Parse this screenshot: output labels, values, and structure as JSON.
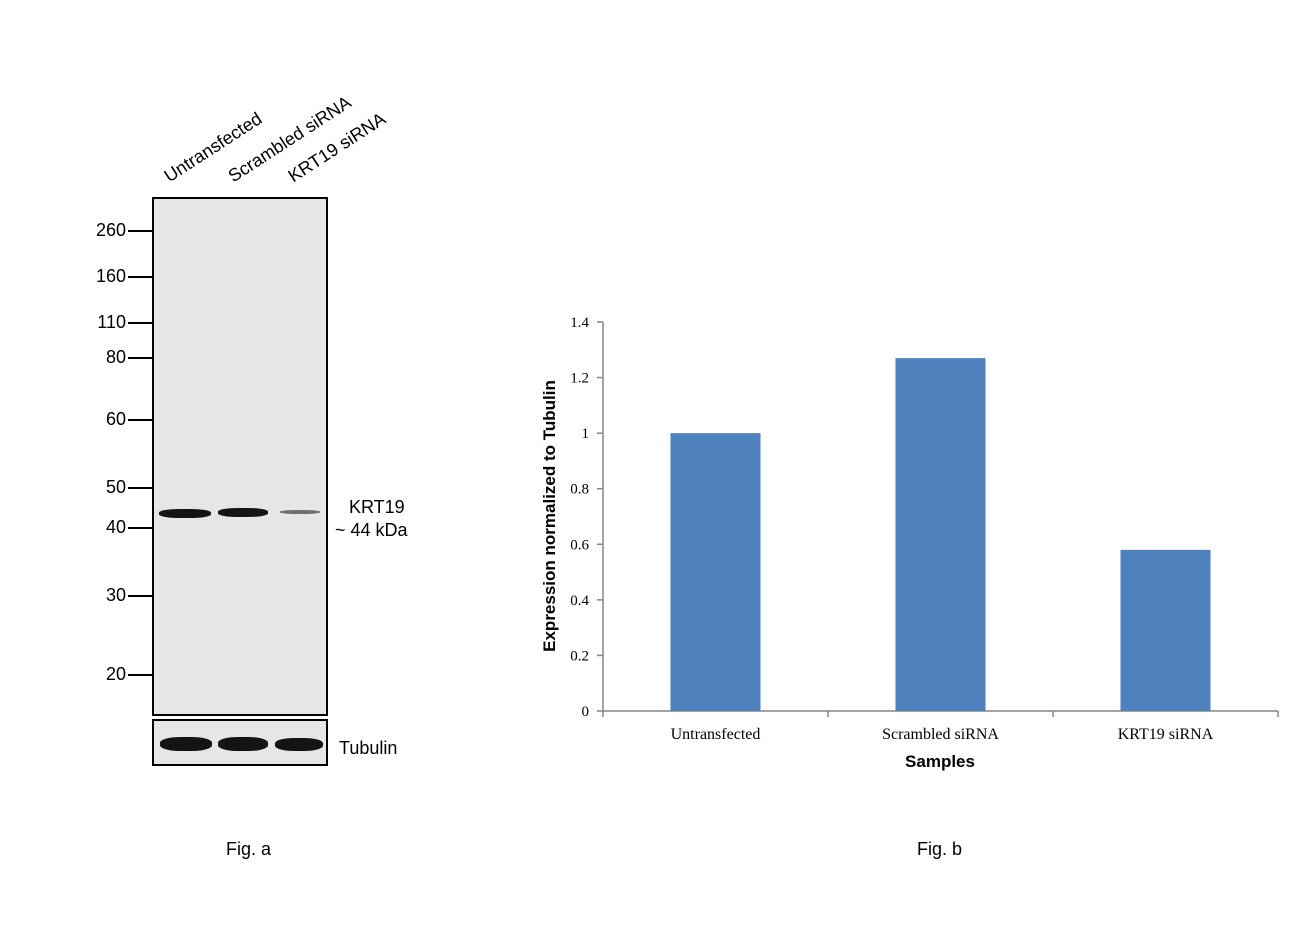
{
  "western_blot": {
    "lane_labels": [
      "Untransfected",
      "Scrambled siRNA",
      "KRT19 siRNA"
    ],
    "mw_markers": [
      "260",
      "160",
      "110",
      "80",
      "60",
      "50",
      "40",
      "30",
      "20"
    ],
    "target_label": "KRT19",
    "target_size": "~ 44 kDa",
    "loading_control_label": "Tubulin",
    "caption": "Fig. a"
  },
  "chart_data": {
    "type": "bar",
    "categories": [
      "Untransfected",
      "Scrambled siRNA",
      "KRT19 siRNA"
    ],
    "values": [
      1.0,
      1.27,
      0.58
    ],
    "xlabel": "Samples",
    "ylabel": "Expression normalized to Tubulin",
    "ylim": [
      0,
      1.4
    ],
    "yticks": [
      "0",
      "0.2",
      "0.4",
      "0.6",
      "0.8",
      "1",
      "1.2",
      "1.4"
    ],
    "bar_color": "#4f81bd",
    "grid": false,
    "legend": "none",
    "caption": "Fig. b"
  }
}
